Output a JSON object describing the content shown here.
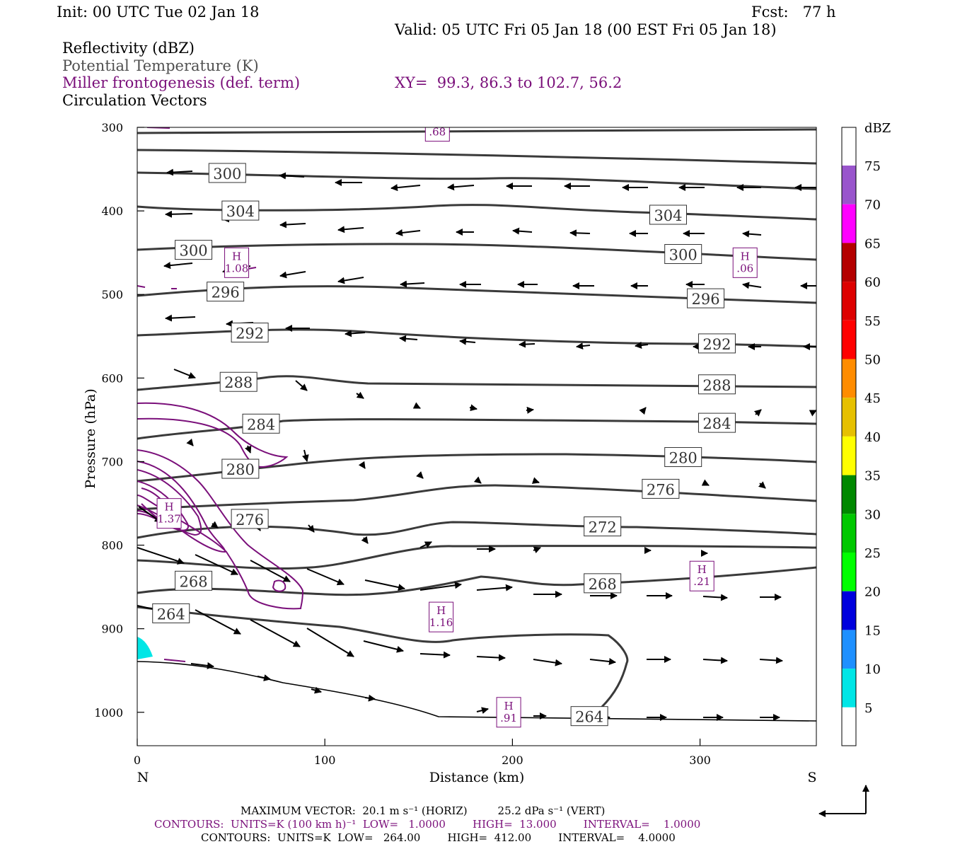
{
  "header": {
    "init": "Init: 00 UTC Tue 02 Jan 18",
    "fcst": "Fcst:   77 h",
    "valid": "Valid: 05 UTC Fri 05 Jan 18 (00 EST Fri 05 Jan 18)",
    "field1": "Reflectivity (dBZ)",
    "field2": "Potential Temperature (K)",
    "field3": "Miller frontogenesis (def. term)",
    "field4": "Circulation Vectors",
    "xy": "XY=  99.3, 86.3 to 102.7, 56.2"
  },
  "footer": {
    "max_vector": "MAXIMUM VECTOR:  20.1 m s⁻¹ (HORIZ)         25.2 dPa s⁻¹ (VERT)",
    "contours_purple": "CONTOURS:  UNITS=K (100 km h)⁻¹  LOW=   1.0000        HIGH=  13.000        INTERVAL=    1.0000",
    "contours_black": "CONTOURS:  UNITS=K  LOW=   264.00        HIGH=  412.00        INTERVAL=    4.0000"
  },
  "colors": {
    "theta": "#3a3a3a",
    "frontogenesis": "#7a0f7a",
    "cyan_reflectivity": "#00e6e6"
  },
  "chart_data": {
    "type": "cross-section",
    "xlabel": "Distance (km)",
    "ylabel": "Pressure (hPa)",
    "x_ticks": [
      0,
      100,
      200,
      300
    ],
    "y_ticks": [
      300,
      400,
      500,
      600,
      700,
      800,
      900,
      1000
    ],
    "xlim": [
      0,
      362
    ],
    "ylim": [
      1040,
      300
    ],
    "y_scale": "linear (pressure increases downward)",
    "left_end_label": "N",
    "right_end_label": "S",
    "colorbar": {
      "title": "dBZ",
      "ticks": [
        5,
        10,
        15,
        20,
        25,
        30,
        35,
        40,
        45,
        50,
        55,
        60,
        65,
        70,
        75
      ],
      "colors": [
        "#00e6e6",
        "#1e90ff",
        "#0000dd",
        "#00ff00",
        "#00c800",
        "#008800",
        "#ffff00",
        "#e6c000",
        "#ff8c00",
        "#ff0000",
        "#dd0000",
        "#b40000",
        "#ff00ff",
        "#9955cc",
        "#ffffff"
      ]
    },
    "theta_contour_labels": [
      {
        "x": 48,
        "p": 355,
        "value": "300"
      },
      {
        "x": 55,
        "p": 400,
        "value": "304"
      },
      {
        "x": 283,
        "p": 405,
        "value": "304"
      },
      {
        "x": 30,
        "p": 447,
        "value": "300"
      },
      {
        "x": 291,
        "p": 452,
        "value": "300"
      },
      {
        "x": 47,
        "p": 497,
        "value": "296"
      },
      {
        "x": 303,
        "p": 505,
        "value": "296"
      },
      {
        "x": 60,
        "p": 546,
        "value": "292"
      },
      {
        "x": 309,
        "p": 559,
        "value": "292"
      },
      {
        "x": 54,
        "p": 605,
        "value": "288"
      },
      {
        "x": 309,
        "p": 608,
        "value": "288"
      },
      {
        "x": 66,
        "p": 655,
        "value": "284"
      },
      {
        "x": 309,
        "p": 654,
        "value": "284"
      },
      {
        "x": 55,
        "p": 709,
        "value": "280"
      },
      {
        "x": 291,
        "p": 695,
        "value": "280"
      },
      {
        "x": 279,
        "p": 733,
        "value": "276"
      },
      {
        "x": 60,
        "p": 769,
        "value": "276"
      },
      {
        "x": 248,
        "p": 778,
        "value": "272"
      },
      {
        "x": 30,
        "p": 843,
        "value": "268"
      },
      {
        "x": 248,
        "p": 846,
        "value": "268"
      },
      {
        "x": 18,
        "p": 882,
        "value": "264"
      },
      {
        "x": 241,
        "p": 1005,
        "value": "264"
      }
    ],
    "frontogenesis_maxima": [
      {
        "x": 160,
        "p": 306,
        "label": ".68"
      },
      {
        "x": 53,
        "p": 462,
        "label": "H\n1.08"
      },
      {
        "x": 324,
        "p": 462,
        "label": "H\n.06"
      },
      {
        "x": 17,
        "p": 762,
        "label": "H\n1.37"
      },
      {
        "x": 301,
        "p": 837,
        "label": "H\n.21"
      },
      {
        "x": 162,
        "p": 886,
        "label": "H\n1.16"
      },
      {
        "x": 198,
        "p": 1000,
        "label": "H\n.91"
      }
    ]
  }
}
